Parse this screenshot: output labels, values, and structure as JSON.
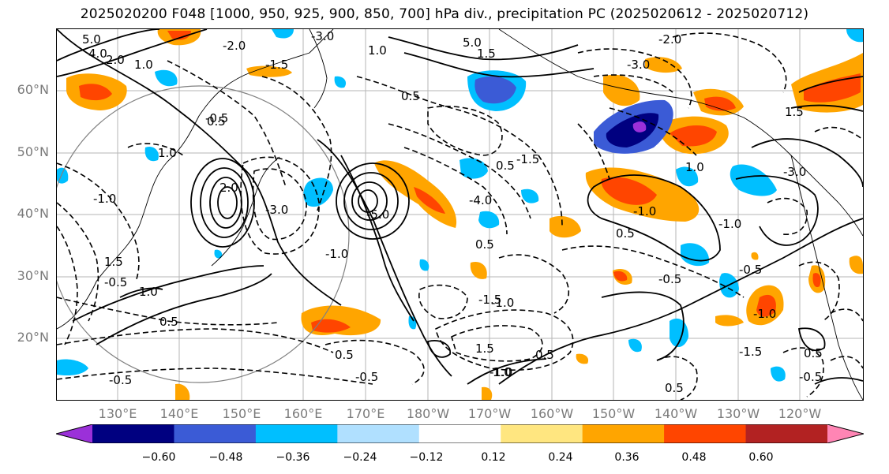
{
  "title": "2025020200 F048 [1000, 950, 925, 900, 850, 700] hPa div., precipitation PC (2025020612 - 2025020712)",
  "latitude_labels": [
    "60°N",
    "50°N",
    "40°N",
    "30°N",
    "20°N"
  ],
  "longitude_labels": [
    "130°E",
    "140°E",
    "150°E",
    "160°E",
    "170°E",
    "180°W",
    "170°W",
    "160°W",
    "150°W",
    "140°W",
    "130°W",
    "120°W"
  ],
  "colorbar": {
    "tick_labels": [
      "−0.60",
      "−0.48",
      "−0.36",
      "−0.24",
      "−0.12",
      "0.12",
      "0.24",
      "0.36",
      "0.48",
      "0.60"
    ],
    "colors": [
      "#9b30d9",
      "#000080",
      "#3b5bd6",
      "#00bfff",
      "#b0e0ff",
      "#ffffff",
      "#ffe680",
      "#ffa500",
      "#ff4500",
      "#b22222",
      "#ff85b4"
    ]
  },
  "contour_labels": [
    "5.0",
    "4.0",
    "2.0",
    "1.0",
    "-2.0",
    "-1.5",
    "-3.0",
    "1.0",
    "5.0",
    "1.5",
    "-2.0",
    "-3.0",
    "0.5",
    "-0.5",
    "1.0",
    "-1.0",
    "2.0",
    "-3.0",
    "-5.0",
    "0.5",
    "-4.0",
    "0.5",
    "-1.5",
    "0.5",
    "-0.5",
    "0.5",
    "1.0",
    "-0.5",
    "1.5",
    "-1.0",
    "0.5",
    "-1.0",
    "-0.5",
    "-1.5",
    "1.5",
    "-1.0",
    "1.0",
    "-3.0",
    "1.5",
    "-1.0",
    "-1.0",
    "-0.5",
    "0.5",
    "-0.5",
    "-1.0",
    "1.0",
    "0.5",
    "-1.5",
    "0.5",
    "-0.5",
    "0.5"
  ],
  "colors": {
    "grid": "#b5b5b5",
    "coast": "#000000",
    "tick_text": "#7a7a7a",
    "circle": "#808080"
  }
}
